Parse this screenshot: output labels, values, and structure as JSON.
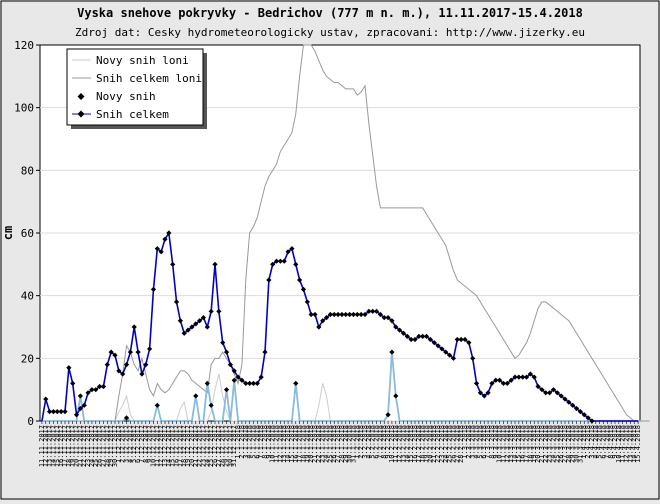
{
  "chart_data": {
    "type": "line",
    "title": "Vyska snehove pokryvky - Bedrichov (777 m n. m.), 11.11.2017-15.4.2018",
    "subtitle": "Zdroj dat: Cesky hydrometeorologicky ustav, zpracovani: http://www.jizerky.eu",
    "xlabel": "",
    "ylabel": "cm",
    "ylim": [
      0,
      120
    ],
    "yticks": [
      0,
      20,
      40,
      60,
      80,
      100,
      120
    ],
    "grid": true,
    "legend_position": "top-left",
    "x_start": "2017-11-11",
    "x_end": "2018-04-15",
    "x_tick_format": "d.m.yyyy",
    "legend": [
      "Novy snih loni",
      "Snih celkem loni",
      "Novy snih",
      "Snih celkem"
    ],
    "series": [
      {
        "name": "Novy snih loni",
        "color": "#cccccc",
        "style": "line",
        "values": [
          0,
          0,
          0,
          0,
          0,
          0,
          0,
          0,
          0,
          0,
          0,
          0,
          0,
          0,
          0,
          0,
          0,
          0,
          0,
          0,
          3,
          5,
          8,
          2,
          0,
          0,
          0,
          0,
          0,
          0,
          0,
          0,
          0,
          0,
          0,
          0,
          4,
          6,
          0,
          0,
          0,
          0,
          0,
          0,
          3,
          10,
          15,
          8,
          3,
          0,
          0,
          0,
          0,
          0,
          0,
          0,
          0,
          0,
          0,
          0,
          0,
          0,
          0,
          0,
          0,
          0,
          0,
          0,
          0,
          0,
          0,
          0,
          5,
          12,
          8,
          0,
          0,
          0,
          0,
          0,
          0,
          0,
          0,
          0,
          0,
          0,
          0,
          0,
          0,
          0,
          0,
          0,
          0,
          0,
          0,
          0,
          0,
          0,
          0,
          0,
          0,
          0,
          0,
          0,
          0,
          0,
          0,
          0,
          0,
          0,
          0,
          0,
          0,
          0,
          0,
          0,
          0,
          0,
          0,
          0,
          0,
          0,
          0,
          0,
          0,
          0,
          0,
          0,
          0,
          0,
          0,
          0,
          0,
          0,
          0,
          0,
          0,
          0,
          0,
          0,
          0,
          0,
          0,
          0,
          0,
          0,
          0,
          0,
          0,
          0,
          0,
          0,
          0,
          0,
          0,
          0,
          0
        ]
      },
      {
        "name": "Snih celkem loni",
        "color": "#999999",
        "style": "line",
        "values": [
          0,
          0,
          0,
          0,
          0,
          0,
          0,
          0,
          0,
          0,
          0,
          0,
          0,
          0,
          0,
          0,
          0,
          0,
          0,
          0,
          8,
          15,
          24,
          22,
          18,
          16,
          20,
          15,
          10,
          8,
          12,
          10,
          9,
          10,
          12,
          14,
          16,
          16,
          15,
          13,
          12,
          11,
          10,
          9,
          18,
          20,
          20,
          22,
          20,
          18,
          15,
          12,
          18,
          45,
          60,
          62,
          65,
          70,
          75,
          78,
          80,
          82,
          86,
          88,
          90,
          92,
          98,
          110,
          120,
          120,
          120,
          118,
          115,
          112,
          110,
          109,
          108,
          108,
          107,
          106,
          106,
          106,
          104,
          105,
          107,
          95,
          85,
          75,
          68,
          68,
          68,
          68,
          68,
          68,
          68,
          68,
          68,
          68,
          68,
          68,
          66,
          64,
          62,
          60,
          58,
          56,
          52,
          48,
          45,
          44,
          43,
          42,
          41,
          40,
          38,
          36,
          34,
          32,
          30,
          28,
          26,
          24,
          22,
          20,
          21,
          23,
          25,
          28,
          32,
          36,
          38,
          38,
          37,
          36,
          35,
          34,
          33,
          32,
          30,
          28,
          26,
          24,
          22,
          20,
          18,
          16,
          14,
          12,
          10,
          8,
          6,
          4,
          2,
          1,
          0,
          0,
          0,
          0,
          0
        ]
      },
      {
        "name": "Novy snih",
        "color": "#88bbdd",
        "style": "line-markers",
        "values": [
          0,
          0,
          0,
          0,
          0,
          0,
          0,
          0,
          0,
          0,
          8,
          0,
          0,
          0,
          0,
          0,
          0,
          0,
          0,
          0,
          0,
          0,
          1,
          0,
          0,
          0,
          0,
          0,
          0,
          0,
          5,
          0,
          0,
          0,
          0,
          0,
          0,
          0,
          0,
          0,
          8,
          0,
          0,
          12,
          5,
          0,
          0,
          0,
          10,
          0,
          13,
          0,
          0,
          0,
          0,
          0,
          0,
          0,
          0,
          0,
          0,
          0,
          0,
          0,
          0,
          0,
          12,
          0,
          0,
          0,
          0,
          0,
          0,
          0,
          0,
          0,
          0,
          0,
          0,
          0,
          0,
          0,
          0,
          0,
          0,
          0,
          0,
          0,
          0,
          0,
          2,
          22,
          8,
          0,
          0,
          0,
          0,
          0,
          0,
          0,
          0,
          0,
          0,
          0,
          0,
          0,
          0,
          0,
          0,
          0,
          0,
          0,
          0,
          0,
          0,
          0,
          0,
          0,
          0,
          0,
          0,
          0,
          0,
          0,
          0,
          0,
          0,
          0,
          0,
          0,
          0,
          0,
          0,
          0,
          0,
          0,
          0,
          0,
          0,
          0,
          0,
          0,
          0,
          0,
          0,
          0,
          0,
          0,
          0,
          0,
          0,
          0,
          0,
          0,
          0,
          0,
          0
        ]
      },
      {
        "name": "Snih celkem",
        "color": "#0000cc",
        "style": "line-markers",
        "values": [
          0,
          7,
          3,
          3,
          3,
          3,
          3,
          17,
          12,
          2,
          4,
          5,
          9,
          10,
          10,
          11,
          11,
          18,
          22,
          21,
          16,
          15,
          18,
          22,
          30,
          22,
          15,
          18,
          23,
          42,
          55,
          54,
          58,
          60,
          50,
          38,
          32,
          28,
          29,
          30,
          31,
          32,
          33,
          30,
          35,
          50,
          35,
          25,
          22,
          18,
          16,
          14,
          13,
          12,
          12,
          12,
          12,
          14,
          22,
          45,
          50,
          51,
          51,
          51,
          54,
          55,
          50,
          45,
          42,
          38,
          34,
          34,
          30,
          32,
          33,
          34,
          34,
          34,
          34,
          34,
          34,
          34,
          34,
          34,
          34,
          35,
          35,
          35,
          34,
          33,
          33,
          32,
          30,
          29,
          28,
          27,
          26,
          26,
          27,
          27,
          27,
          26,
          25,
          24,
          23,
          22,
          21,
          20,
          26,
          26,
          26,
          25,
          20,
          12,
          9,
          8,
          9,
          12,
          13,
          13,
          12,
          12,
          13,
          14,
          14,
          14,
          14,
          15,
          14,
          11,
          10,
          9,
          9,
          10,
          9,
          8,
          7,
          6,
          5,
          4,
          3,
          2,
          1,
          0,
          0,
          0,
          0,
          0,
          0,
          0,
          0,
          0,
          0,
          0,
          0,
          0
        ]
      }
    ]
  }
}
